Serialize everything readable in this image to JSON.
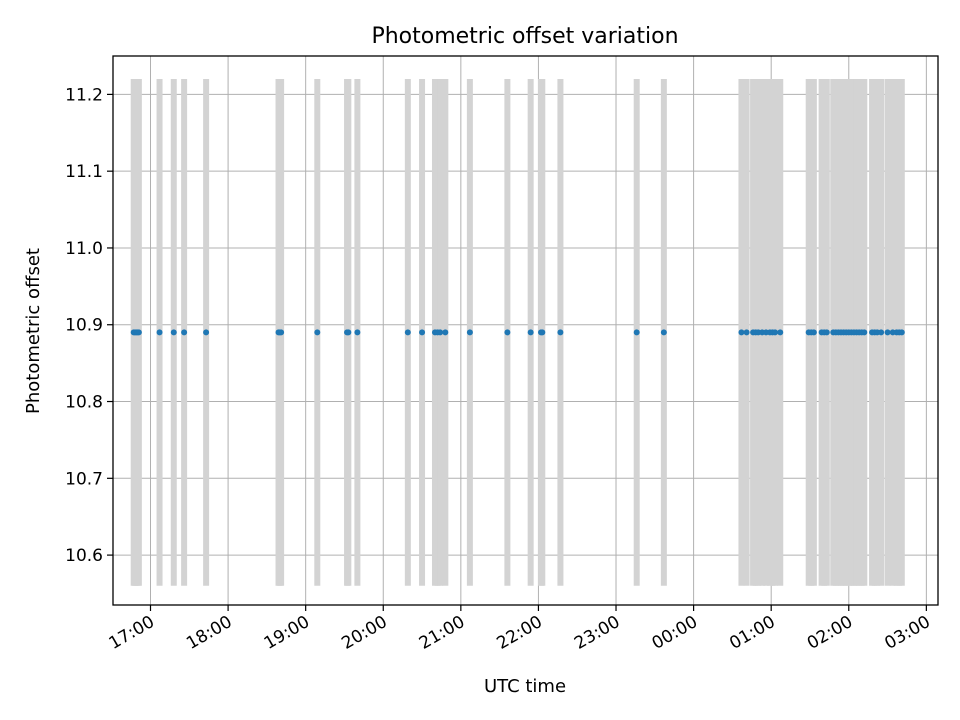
{
  "chart_data": {
    "type": "scatter",
    "title": "Photometric offset variation",
    "xlabel": "UTC time",
    "ylabel": "Photometric offset",
    "xlim": [
      "2024-01-01T16:31",
      "2024-01-02T03:09"
    ],
    "ylim": [
      10.535,
      11.25
    ],
    "x_tick_labels": [
      "17:00",
      "18:00",
      "19:00",
      "20:00",
      "21:00",
      "22:00",
      "23:00",
      "00:00",
      "01:00",
      "02:00",
      "03:00"
    ],
    "x_ticks": [
      "2024-01-01T17:00",
      "2024-01-01T18:00",
      "2024-01-01T19:00",
      "2024-01-01T20:00",
      "2024-01-01T21:00",
      "2024-01-01T22:00",
      "2024-01-01T23:00",
      "2024-01-02T00:00",
      "2024-01-02T01:00",
      "2024-01-02T02:00",
      "2024-01-02T03:00"
    ],
    "y_tick_labels": [
      "10.6",
      "10.7",
      "10.8",
      "10.9",
      "11.0",
      "11.1",
      "11.2"
    ],
    "y_ticks": [
      10.6,
      10.7,
      10.8,
      10.9,
      11.0,
      11.1,
      11.2
    ],
    "grid": true,
    "colors": {
      "points": "#1f77b4",
      "errorbars": "#d3d3d3",
      "grid": "#b0b0b0"
    },
    "errorbar": {
      "low": 10.56,
      "high": 11.22
    },
    "points": [
      {
        "x": "2024-01-01T16:47",
        "y": 10.89
      },
      {
        "x": "2024-01-01T16:48",
        "y": 10.89
      },
      {
        "x": "2024-01-01T16:49",
        "y": 10.89
      },
      {
        "x": "2024-01-01T16:50",
        "y": 10.89
      },
      {
        "x": "2024-01-01T16:51",
        "y": 10.89
      },
      {
        "x": "2024-01-01T17:07",
        "y": 10.89
      },
      {
        "x": "2024-01-01T17:18",
        "y": 10.89
      },
      {
        "x": "2024-01-01T17:26",
        "y": 10.89
      },
      {
        "x": "2024-01-01T17:43",
        "y": 10.89
      },
      {
        "x": "2024-01-01T18:39",
        "y": 10.89
      },
      {
        "x": "2024-01-01T18:40",
        "y": 10.89
      },
      {
        "x": "2024-01-01T18:41",
        "y": 10.89
      },
      {
        "x": "2024-01-01T19:09",
        "y": 10.89
      },
      {
        "x": "2024-01-01T19:32",
        "y": 10.89
      },
      {
        "x": "2024-01-01T19:33",
        "y": 10.89
      },
      {
        "x": "2024-01-01T19:40",
        "y": 10.89
      },
      {
        "x": "2024-01-01T20:19",
        "y": 10.89
      },
      {
        "x": "2024-01-01T20:30",
        "y": 10.89
      },
      {
        "x": "2024-01-01T20:40",
        "y": 10.89
      },
      {
        "x": "2024-01-01T20:42",
        "y": 10.89
      },
      {
        "x": "2024-01-01T20:44",
        "y": 10.89
      },
      {
        "x": "2024-01-01T20:48",
        "y": 10.89
      },
      {
        "x": "2024-01-01T21:07",
        "y": 10.89
      },
      {
        "x": "2024-01-01T21:36",
        "y": 10.89
      },
      {
        "x": "2024-01-01T21:54",
        "y": 10.89
      },
      {
        "x": "2024-01-01T22:02",
        "y": 10.89
      },
      {
        "x": "2024-01-01T22:03",
        "y": 10.89
      },
      {
        "x": "2024-01-01T22:17",
        "y": 10.89
      },
      {
        "x": "2024-01-01T23:16",
        "y": 10.89
      },
      {
        "x": "2024-01-01T23:37",
        "y": 10.89
      },
      {
        "x": "2024-01-02T00:37",
        "y": 10.89
      },
      {
        "x": "2024-01-02T00:41",
        "y": 10.89
      },
      {
        "x": "2024-01-02T00:46",
        "y": 10.89
      },
      {
        "x": "2024-01-02T00:48",
        "y": 10.89
      },
      {
        "x": "2024-01-02T00:50",
        "y": 10.89
      },
      {
        "x": "2024-01-02T00:53",
        "y": 10.89
      },
      {
        "x": "2024-01-02T00:56",
        "y": 10.89
      },
      {
        "x": "2024-01-02T00:59",
        "y": 10.89
      },
      {
        "x": "2024-01-02T01:01",
        "y": 10.89
      },
      {
        "x": "2024-01-02T01:03",
        "y": 10.89
      },
      {
        "x": "2024-01-02T01:07",
        "y": 10.89
      },
      {
        "x": "2024-01-02T01:29",
        "y": 10.89
      },
      {
        "x": "2024-01-02T01:31",
        "y": 10.89
      },
      {
        "x": "2024-01-02T01:33",
        "y": 10.89
      },
      {
        "x": "2024-01-02T01:39",
        "y": 10.89
      },
      {
        "x": "2024-01-02T01:41",
        "y": 10.89
      },
      {
        "x": "2024-01-02T01:43",
        "y": 10.89
      },
      {
        "x": "2024-01-02T01:48",
        "y": 10.89
      },
      {
        "x": "2024-01-02T01:50",
        "y": 10.89
      },
      {
        "x": "2024-01-02T01:52",
        "y": 10.89
      },
      {
        "x": "2024-01-02T01:54",
        "y": 10.89
      },
      {
        "x": "2024-01-02T01:56",
        "y": 10.89
      },
      {
        "x": "2024-01-02T01:58",
        "y": 10.89
      },
      {
        "x": "2024-01-02T02:00",
        "y": 10.89
      },
      {
        "x": "2024-01-02T02:02",
        "y": 10.89
      },
      {
        "x": "2024-01-02T02:04",
        "y": 10.89
      },
      {
        "x": "2024-01-02T02:06",
        "y": 10.89
      },
      {
        "x": "2024-01-02T02:08",
        "y": 10.89
      },
      {
        "x": "2024-01-02T02:10",
        "y": 10.89
      },
      {
        "x": "2024-01-02T02:12",
        "y": 10.89
      },
      {
        "x": "2024-01-02T02:18",
        "y": 10.89
      },
      {
        "x": "2024-01-02T02:20",
        "y": 10.89
      },
      {
        "x": "2024-01-02T02:22",
        "y": 10.89
      },
      {
        "x": "2024-01-02T02:25",
        "y": 10.89
      },
      {
        "x": "2024-01-02T02:30",
        "y": 10.89
      },
      {
        "x": "2024-01-02T02:34",
        "y": 10.89
      },
      {
        "x": "2024-01-02T02:37",
        "y": 10.89
      },
      {
        "x": "2024-01-02T02:39",
        "y": 10.89
      },
      {
        "x": "2024-01-02T02:41",
        "y": 10.89
      }
    ]
  }
}
